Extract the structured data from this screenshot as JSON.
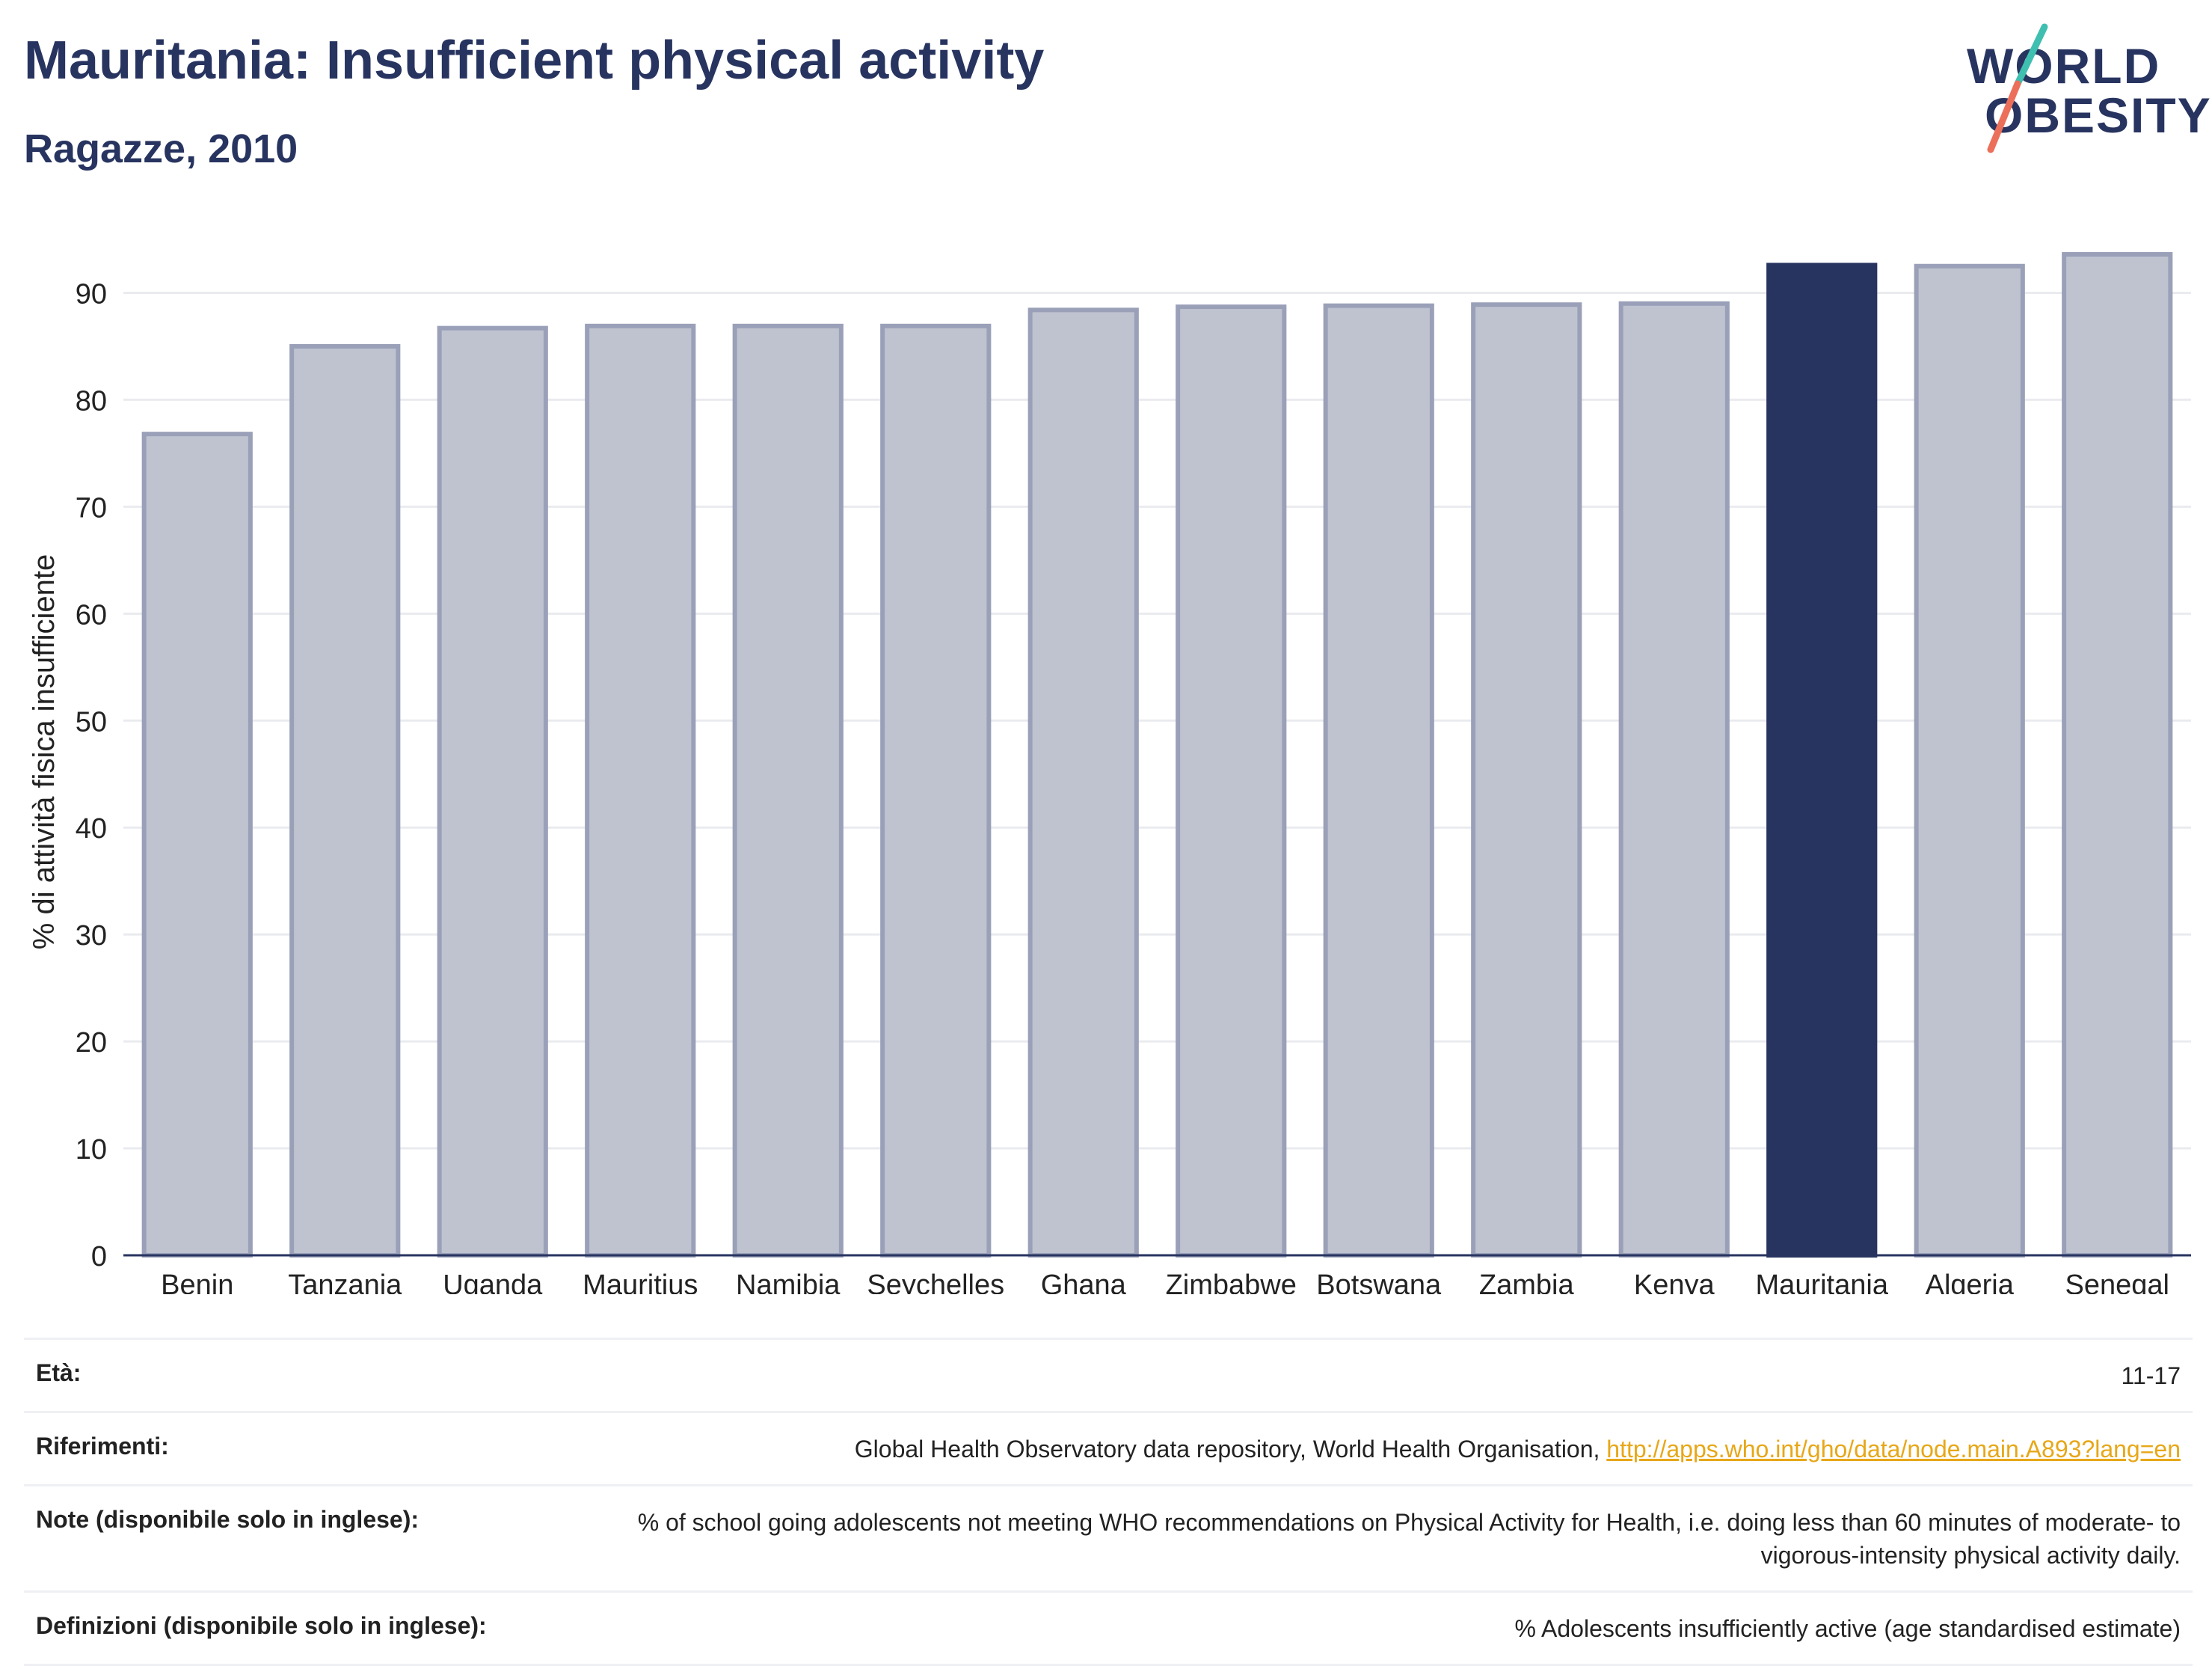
{
  "header": {
    "title": "Mauritania: Insufficient physical activity",
    "subtitle": "Ragazze, 2010"
  },
  "logo": {
    "line1": "WORLD",
    "line2": "OBESITY"
  },
  "colors": {
    "highlight": "#283460",
    "bar_fill": "#bfc3d0",
    "bar_stroke": "#9aa0b8",
    "logo_teal": "#3fbfb0",
    "logo_coral": "#ec6f5a",
    "link": "#e7a718"
  },
  "chart_data": {
    "type": "bar",
    "categories": [
      "Benin",
      "Tanzania",
      "Uganda",
      "Mauritius",
      "Namibia",
      "Seychelles",
      "Ghana",
      "Zimbabwe",
      "Botswana",
      "Zambia",
      "Kenya",
      "Mauritania",
      "Algeria",
      "Senegal"
    ],
    "values": [
      76.8,
      85.0,
      86.7,
      86.9,
      86.9,
      86.9,
      88.4,
      88.7,
      88.8,
      88.9,
      89.0,
      92.6,
      92.5,
      93.6
    ],
    "highlight": "Mauritania",
    "ylabel": "% di attività fisica insufficiente",
    "xlabel": "",
    "ylim": [
      0,
      95
    ],
    "yticks": [
      0,
      10,
      20,
      30,
      40,
      50,
      60,
      70,
      80,
      90
    ],
    "grid": true
  },
  "meta": {
    "age_label": "Età:",
    "age_value": "11-17",
    "refs_label": "Riferimenti:",
    "refs_text": "Global Health Observatory data repository, World Health Organisation, ",
    "refs_link": "http://apps.who.int/gho/data/node.main.A893?lang=en",
    "notes_label": "Note (disponibile solo in inglese):",
    "notes_value": "% of school going adolescents not meeting WHO recommendations on Physical Activity for Health, i.e. doing less than 60 minutes of moderate- to vigorous-intensity physical activity daily.",
    "defs_label": "Definizioni (disponibile solo in inglese):",
    "defs_value": "% Adolescents insufficiently active (age standardised estimate)"
  }
}
